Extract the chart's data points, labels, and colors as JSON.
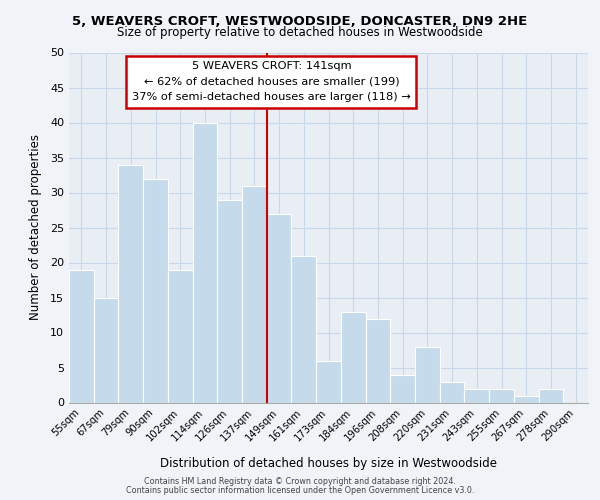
{
  "title": "5, WEAVERS CROFT, WESTWOODSIDE, DONCASTER, DN9 2HE",
  "subtitle": "Size of property relative to detached houses in Westwoodside",
  "xlabel": "Distribution of detached houses by size in Westwoodside",
  "ylabel": "Number of detached properties",
  "bar_labels": [
    "55sqm",
    "67sqm",
    "79sqm",
    "90sqm",
    "102sqm",
    "114sqm",
    "126sqm",
    "137sqm",
    "149sqm",
    "161sqm",
    "173sqm",
    "184sqm",
    "196sqm",
    "208sqm",
    "220sqm",
    "231sqm",
    "243sqm",
    "255sqm",
    "267sqm",
    "278sqm",
    "290sqm"
  ],
  "bar_values": [
    19,
    15,
    34,
    32,
    19,
    40,
    29,
    31,
    27,
    21,
    6,
    13,
    12,
    4,
    8,
    3,
    2,
    2,
    1,
    2,
    0
  ],
  "bar_color": "#c5daea",
  "bar_edge_color": "#ffffff",
  "background_color": "#f0f4f8",
  "plot_bg_color": "#e8eef4",
  "grid_color": "#c8d8e8",
  "vline_color": "#cc0000",
  "annotation_title": "5 WEAVERS CROFT: 141sqm",
  "annotation_line1": "← 62% of detached houses are smaller (199)",
  "annotation_line2": "37% of semi-detached houses are larger (118) →",
  "annotation_box_color": "#ffffff",
  "annotation_box_edge": "#cc0000",
  "ylim": [
    0,
    50
  ],
  "yticks": [
    0,
    5,
    10,
    15,
    20,
    25,
    30,
    35,
    40,
    45,
    50
  ],
  "footer_line1": "Contains HM Land Registry data © Crown copyright and database right 2024.",
  "footer_line2": "Contains public sector information licensed under the Open Government Licence v3.0."
}
